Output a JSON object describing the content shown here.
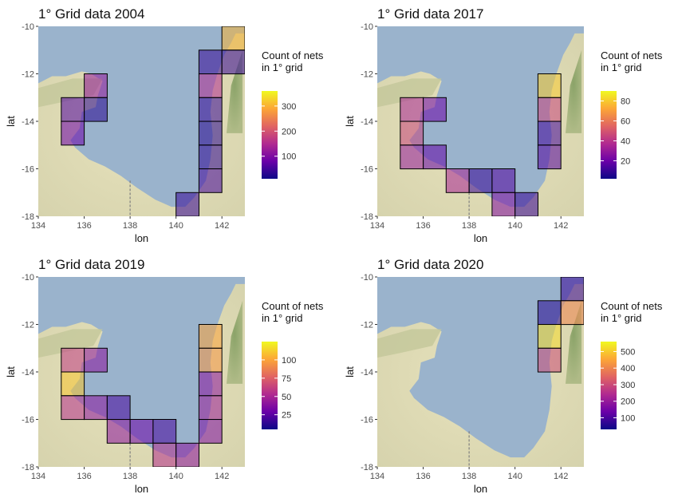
{
  "chart_data": [
    {
      "type": "heatmap",
      "title": "1° Grid data 2004",
      "xlabel": "lon",
      "ylabel": "lat",
      "xlim": [
        134,
        143
      ],
      "ylim": [
        -18,
        -10
      ],
      "x_ticks": [
        134,
        136,
        138,
        140,
        142
      ],
      "y_ticks": [
        -10,
        -12,
        -14,
        -16,
        -18
      ],
      "legend": {
        "title_lines": [
          "Count of nets",
          " in 1° grid"
        ],
        "position": "right",
        "range": [
          10,
          360
        ],
        "ticks": [
          100,
          200,
          300
        ]
      },
      "cells": [
        {
          "lon": 142,
          "lat": -11,
          "count": 300
        },
        {
          "lon": 141,
          "lat": -12,
          "count": 40
        },
        {
          "lon": 142,
          "lat": -12,
          "count": 40
        },
        {
          "lon": 141,
          "lat": -13,
          "count": 150
        },
        {
          "lon": 141,
          "lat": -14,
          "count": 40
        },
        {
          "lon": 141,
          "lat": -15,
          "count": 30
        },
        {
          "lon": 141,
          "lat": -16,
          "count": 35
        },
        {
          "lon": 141,
          "lat": -17,
          "count": 50
        },
        {
          "lon": 140,
          "lat": -18,
          "count": 40
        },
        {
          "lon": 136,
          "lat": -13,
          "count": 120
        },
        {
          "lon": 135,
          "lat": -14,
          "count": 60
        },
        {
          "lon": 136,
          "lat": -14,
          "count": 30
        },
        {
          "lon": 135,
          "lat": -15,
          "count": 80
        }
      ]
    },
    {
      "type": "heatmap",
      "title": "1° Grid data 2017",
      "xlabel": "lon",
      "ylabel": "lat",
      "xlim": [
        134,
        143
      ],
      "ylim": [
        -18,
        -10
      ],
      "x_ticks": [
        134,
        136,
        138,
        140,
        142
      ],
      "y_ticks": [
        -10,
        -12,
        -14,
        -16,
        -18
      ],
      "legend": {
        "title_lines": [
          "Count of nets",
          " in 1° grid"
        ],
        "position": "right",
        "range": [
          2,
          90
        ],
        "ticks": [
          20,
          40,
          60,
          80
        ]
      },
      "cells": [
        {
          "lon": 141,
          "lat": -13,
          "count": 80
        },
        {
          "lon": 135,
          "lat": -14,
          "count": 35
        },
        {
          "lon": 136,
          "lat": -14,
          "count": 20
        },
        {
          "lon": 141,
          "lat": -14,
          "count": 45
        },
        {
          "lon": 135,
          "lat": -15,
          "count": 45
        },
        {
          "lon": 141,
          "lat": -15,
          "count": 12
        },
        {
          "lon": 135,
          "lat": -16,
          "count": 30
        },
        {
          "lon": 136,
          "lat": -16,
          "count": 18
        },
        {
          "lon": 141,
          "lat": -16,
          "count": 15
        },
        {
          "lon": 137,
          "lat": -17,
          "count": 35
        },
        {
          "lon": 138,
          "lat": -17,
          "count": 10
        },
        {
          "lon": 139,
          "lat": -17,
          "count": 15
        },
        {
          "lon": 139,
          "lat": -18,
          "count": 25
        },
        {
          "lon": 140,
          "lat": -18,
          "count": 10
        }
      ]
    },
    {
      "type": "heatmap",
      "title": "1° Grid data 2019",
      "xlabel": "lon",
      "ylabel": "lat",
      "xlim": [
        134,
        143
      ],
      "ylim": [
        -18,
        -10
      ],
      "x_ticks": [
        134,
        136,
        138,
        140,
        142
      ],
      "y_ticks": [
        -10,
        -12,
        -14,
        -16,
        -18
      ],
      "legend": {
        "title_lines": [
          "Count of nets",
          " in 1° grid"
        ],
        "position": "right",
        "range": [
          5,
          125
        ],
        "ticks": [
          25,
          50,
          75,
          100
        ]
      },
      "cells": [
        {
          "lon": 141,
          "lat": -13,
          "count": 100
        },
        {
          "lon": 135,
          "lat": -14,
          "count": 60
        },
        {
          "lon": 136,
          "lat": -14,
          "count": 40
        },
        {
          "lon": 141,
          "lat": -14,
          "count": 95
        },
        {
          "lon": 135,
          "lat": -15,
          "count": 110
        },
        {
          "lon": 141,
          "lat": -15,
          "count": 40
        },
        {
          "lon": 135,
          "lat": -16,
          "count": 55
        },
        {
          "lon": 136,
          "lat": -16,
          "count": 40
        },
        {
          "lon": 137,
          "lat": -16,
          "count": 20
        },
        {
          "lon": 141,
          "lat": -16,
          "count": 45
        },
        {
          "lon": 137,
          "lat": -17,
          "count": 40
        },
        {
          "lon": 138,
          "lat": -17,
          "count": 30
        },
        {
          "lon": 139,
          "lat": -17,
          "count": 20
        },
        {
          "lon": 141,
          "lat": -17,
          "count": 35
        },
        {
          "lon": 139,
          "lat": -18,
          "count": 55
        },
        {
          "lon": 140,
          "lat": -18,
          "count": 40
        }
      ]
    },
    {
      "type": "heatmap",
      "title": "1° Grid data 2020",
      "xlabel": "lon",
      "ylabel": "lat",
      "xlim": [
        134,
        143
      ],
      "ylim": [
        -18,
        -10
      ],
      "x_ticks": [
        134,
        136,
        138,
        140,
        142
      ],
      "y_ticks": [
        -10,
        -12,
        -14,
        -16,
        -18
      ],
      "legend": {
        "title_lines": [
          "Count of nets",
          " in 1° grid"
        ],
        "position": "right",
        "range": [
          30,
          560
        ],
        "ticks": [
          100,
          200,
          300,
          400,
          500
        ]
      },
      "cells": [
        {
          "lon": 142,
          "lat": -11,
          "count": 80
        },
        {
          "lon": 141,
          "lat": -12,
          "count": 60
        },
        {
          "lon": 142,
          "lat": -12,
          "count": 400
        },
        {
          "lon": 141,
          "lat": -13,
          "count": 520
        },
        {
          "lon": 141,
          "lat": -14,
          "count": 300
        }
      ]
    }
  ],
  "colors": {
    "sea": "#9ab3cc",
    "land": "#dcd9b6",
    "vegetation": "#8fa669",
    "cell_border": "#000000",
    "reference_line": "#7f7f7f",
    "plasma_scale": [
      "#0d0887",
      "#6a00a8",
      "#b12a90",
      "#e16462",
      "#fca636",
      "#f0f921"
    ]
  }
}
